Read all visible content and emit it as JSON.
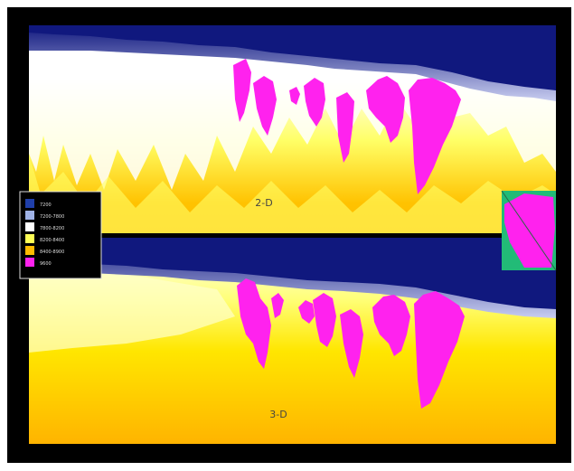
{
  "panels": [
    {
      "label": "2-D"
    },
    {
      "label": "3-D"
    }
  ],
  "legend": {
    "entries": [
      {
        "label": "7200",
        "color": "#1f3faa"
      },
      {
        "label": "7200-7800",
        "color": "#9fb2e6"
      },
      {
        "label": "7800-8200",
        "color": "#ffffff"
      },
      {
        "label": "8200-8400",
        "color": "#ffff55"
      },
      {
        "label": "8400-8900",
        "color": "#ffbb00"
      },
      {
        "label": "9600",
        "color": "#ff22ee"
      }
    ]
  },
  "colors": {
    "background": "#000000",
    "water": "#10187e",
    "sediment_white": "#ffffff",
    "sediment_yellow": "#ffff55",
    "sediment_orange": "#ffbb00",
    "salt": "#ff22ee",
    "inset_green": "#22bb77"
  }
}
